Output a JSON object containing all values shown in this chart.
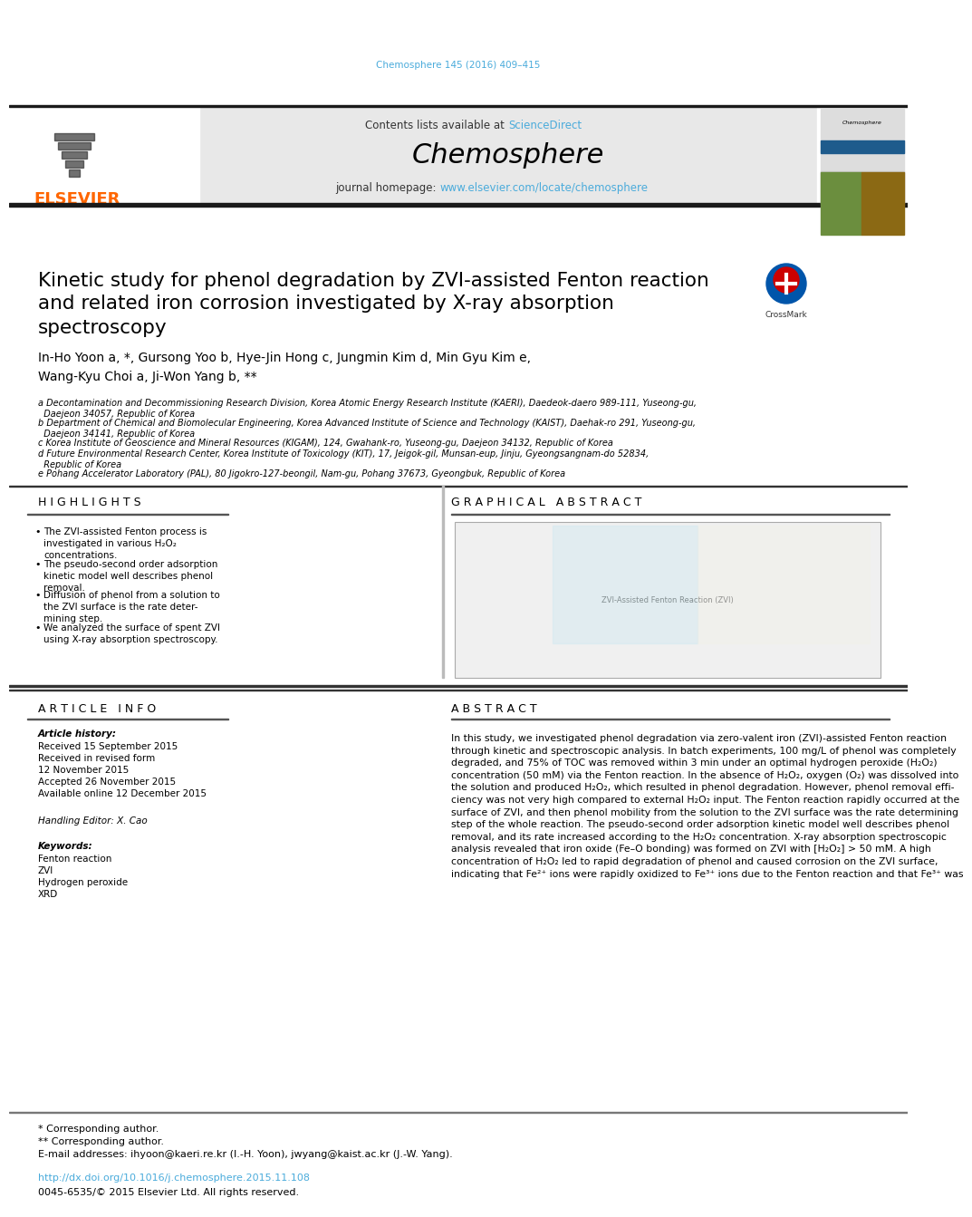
{
  "journal_citation": "Chemosphere 145 (2016) 409–415",
  "journal_name": "Chemosphere",
  "contents_text": "Contents lists available at ",
  "science_direct": "ScienceDirect",
  "homepage_text": "journal homepage: ",
  "homepage_url": "www.elsevier.com/locate/chemosphere",
  "title_line1": "Kinetic study for phenol degradation by ZVI-assisted Fenton reaction",
  "title_line2": "and related iron corrosion investigated by X-ray absorption",
  "title_line3": "spectroscopy",
  "authors": "In-Ho Yoon a, *, Gursong Yoo b, Hye-Jin Hong c, Jungmin Kim d, Min Gyu Kim e,",
  "authors2": "Wang-Kyu Choi a, Ji-Won Yang b, **",
  "affil_a": "a Decontamination and Decommissioning Research Division, Korea Atomic Energy Research Institute (KAERI), Daedeok-daero 989-111, Yuseong-gu,\n  Daejeon 34057, Republic of Korea",
  "affil_b": "b Department of Chemical and Biomolecular Engineering, Korea Advanced Institute of Science and Technology (KAIST), Daehak-ro 291, Yuseong-gu,\n  Daejeon 34141, Republic of Korea",
  "affil_c": "c Korea Institute of Geoscience and Mineral Resources (KIGAM), 124, Gwahank-ro, Yuseong-gu, Daejeon 34132, Republic of Korea",
  "affil_d": "d Future Environmental Research Center, Korea Institute of Toxicology (KIT), 17, Jeigok-gil, Munsan-eup, Jinju, Gyeongsangnam-do 52834,\n  Republic of Korea",
  "affil_e": "e Pohang Accelerator Laboratory (PAL), 80 Jigokro-127-beongil, Nam-gu, Pohang 37673, Gyeongbuk, Republic of Korea",
  "highlights_title": "H I G H L I G H T S",
  "graphical_abstract_title": "G R A P H I C A L   A B S T R A C T",
  "bullet1": "The ZVI-assisted Fenton process is\ninvestigated in various H₂O₂\nconcentrations.",
  "bullet2": "The pseudo-second order adsorption\nkinetic model well describes phenol\nremoval.",
  "bullet3": "Diffusion of phenol from a solution to\nthe ZVI surface is the rate deter-\nmining step.",
  "bullet4": "We analyzed the surface of spent ZVI\nusing X-ray absorption spectroscopy.",
  "article_info_title": "A R T I C L E   I N F O",
  "article_history": "Article history:",
  "received": "Received 15 September 2015",
  "received_revised1": "Received in revised form",
  "received_revised2": "12 November 2015",
  "accepted": "Accepted 26 November 2015",
  "available": "Available online 12 December 2015",
  "handling_editor": "Handling Editor: X. Cao",
  "keywords_title": "Keywords:",
  "keywords": [
    "Fenton reaction",
    "ZVI",
    "Hydrogen peroxide",
    "XRD"
  ],
  "abstract_title": "A B S T R A C T",
  "abstract_text": "In this study, we investigated phenol degradation via zero-valent iron (ZVI)-assisted Fenton reaction\nthrough kinetic and spectroscopic analysis. In batch experiments, 100 mg/L of phenol was completely\ndegraded, and 75% of TOC was removed within 3 min under an optimal hydrogen peroxide (H₂O₂)\nconcentration (50 mM) via the Fenton reaction. In the absence of H₂O₂, oxygen (O₂) was dissolved into\nthe solution and produced H₂O₂, which resulted in phenol degradation. However, phenol removal effi-\nciency was not very high compared to external H₂O₂ input. The Fenton reaction rapidly occurred at the\nsurface of ZVI, and then phenol mobility from the solution to the ZVI surface was the rate determining\nstep of the whole reaction. The pseudo-second order adsorption kinetic model well describes phenol\nremoval, and its rate increased according to the H₂O₂ concentration. X-ray absorption spectroscopic\nanalysis revealed that iron oxide (Fe–O bonding) was formed on ZVI with [H₂O₂] > 50 mM. A high\nconcentration of H₂O₂ led to rapid degradation of phenol and caused corrosion on the ZVI surface,\nindicating that Fe²⁺ ions were rapidly oxidized to Fe³⁺ ions due to the Fenton reaction and that Fe³⁺ was",
  "footnote1": "* Corresponding author.",
  "footnote2": "** Corresponding author.",
  "footnote3": "E-mail addresses: ihyoon@kaeri.re.kr (I.-H. Yoon), jwyang@kaist.ac.kr (J.-W. Yang).",
  "doi": "http://dx.doi.org/10.1016/j.chemosphere.2015.11.108",
  "issn": "0045-6535/© 2015 Elsevier Ltd. All rights reserved.",
  "elsevier_color": "#FF6600",
  "link_color": "#4AABDB",
  "header_bg": "#E8E8E8",
  "black_bar": "#1A1A1A"
}
